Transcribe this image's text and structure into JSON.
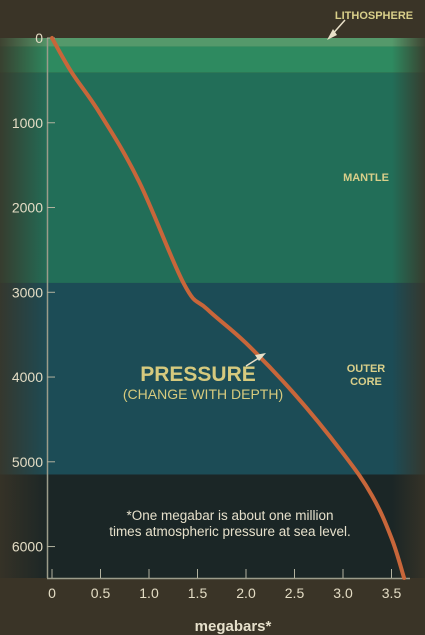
{
  "chart_data": {
    "type": "line",
    "title": "",
    "xlabel": "megabars*",
    "ylabel": "",
    "xlim": [
      0,
      3.65
    ],
    "ylim": [
      6371,
      0
    ],
    "x_ticks": [
      "0",
      "0.5",
      "1.0",
      "1.5",
      "2.0",
      "2.5",
      "3.0",
      "3.5"
    ],
    "y_ticks": [
      "0",
      "1000",
      "2000",
      "3000",
      "4000",
      "5000",
      "6000"
    ],
    "series": [
      {
        "name": "PRESSURE",
        "points": [
          {
            "x": 0,
            "y": 0
          },
          {
            "x": 0.2,
            "y": 400
          },
          {
            "x": 0.5,
            "y": 900
          },
          {
            "x": 0.9,
            "y": 1700
          },
          {
            "x": 1.36,
            "y": 2900
          },
          {
            "x": 1.6,
            "y": 3200
          },
          {
            "x": 2.0,
            "y": 3600
          },
          {
            "x": 2.5,
            "y": 4200
          },
          {
            "x": 3.0,
            "y": 4900
          },
          {
            "x": 3.3,
            "y": 5400
          },
          {
            "x": 3.5,
            "y": 5900
          },
          {
            "x": 3.63,
            "y": 6371
          }
        ]
      }
    ],
    "layers": [
      {
        "label": "LITHOSPHERE",
        "from": 0,
        "to": 100,
        "color": "#55996b"
      },
      {
        "label": "",
        "from": 100,
        "to": 410,
        "color": "#2e8a60"
      },
      {
        "label": "MANTLE",
        "from": 410,
        "to": 2890,
        "color": "#226e58"
      },
      {
        "label": "OUTER CORE",
        "label_lines": [
          "OUTER",
          "CORE"
        ],
        "from": 2890,
        "to": 5150,
        "color": "#1c4c56"
      },
      {
        "label": "",
        "from": 5150,
        "to": 6371,
        "color": "#1b2626"
      }
    ],
    "curve_label": "PRESSURE",
    "curve_sublabel": "(CHANGE WITH DEPTH)",
    "footnote_lines": [
      "*One megabar is about one million",
      "times atmospheric pressure at sea level."
    ],
    "curve_color": "#c8663a",
    "grid": false,
    "legend": "none"
  }
}
